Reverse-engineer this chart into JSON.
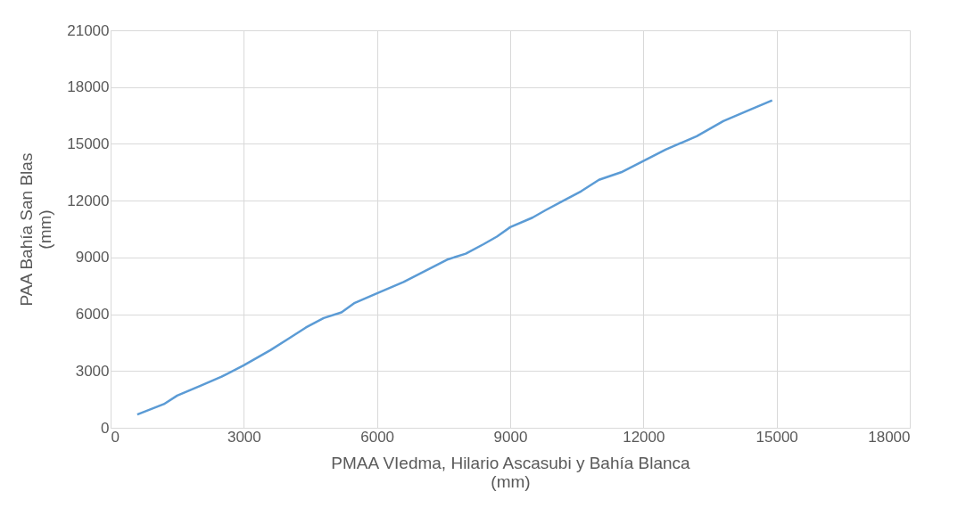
{
  "chart_data": {
    "type": "line",
    "xlabel": "PMAA VIedma, Hilario Ascasubi y Bahía Blanca\n(mm)",
    "ylabel": "PAA Bahía San Blas\n(mm)",
    "x": [
      600,
      1200,
      1500,
      2000,
      2500,
      3000,
      3300,
      3600,
      4000,
      4400,
      4800,
      5200,
      5500,
      6000,
      6600,
      7100,
      7600,
      8000,
      8400,
      8700,
      9000,
      9500,
      9800,
      10200,
      10600,
      11000,
      11500,
      12000,
      12500,
      13200,
      13800,
      14400,
      14900
    ],
    "series": [
      {
        "color": "#5b9bd5",
        "values": [
          700,
          1250,
          1700,
          2200,
          2700,
          3300,
          3700,
          4100,
          4700,
          5300,
          5800,
          6100,
          6600,
          7100,
          7700,
          8300,
          8900,
          9200,
          9700,
          10100,
          10600,
          11100,
          11500,
          12000,
          12500,
          13100,
          13500,
          14100,
          14700,
          15400,
          16200,
          16800,
          17300
        ]
      }
    ],
    "xlim": [
      0,
      18000
    ],
    "xticks": [
      0,
      3000,
      6000,
      9000,
      12000,
      15000,
      18000
    ],
    "ylim": [
      0,
      21000
    ],
    "yticks": [
      0,
      3000,
      6000,
      9000,
      12000,
      15000,
      18000,
      21000
    ],
    "grid": true,
    "marker": "none",
    "line_style": "solid"
  }
}
